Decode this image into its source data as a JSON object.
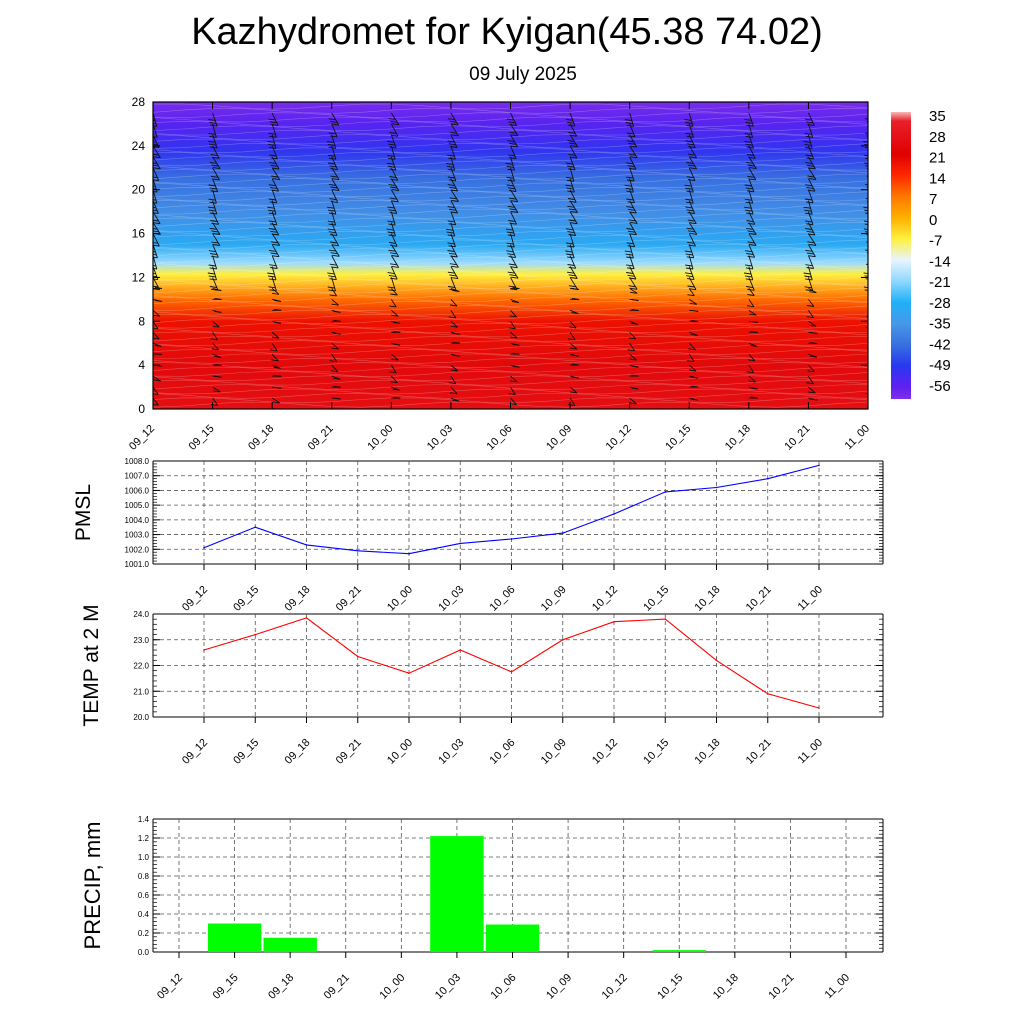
{
  "page": {
    "title": "Kazhydromet for Kyigan(45.38 74.02)",
    "subtitle": "09 July 2025"
  },
  "chart_data": [
    {
      "type": "heatmap",
      "title": "",
      "xlabel": "",
      "ylabel": "",
      "x_tick_labels": [
        "09_12",
        "09_15",
        "09_18",
        "09_21",
        "10_00",
        "10_03",
        "10_06",
        "10_09",
        "10_12",
        "10_15",
        "10_18",
        "10_21",
        "11_00"
      ],
      "ylim": [
        0,
        28
      ],
      "y_ticks": [
        0,
        4,
        8,
        12,
        16,
        20,
        24,
        28
      ],
      "colorbar_labels": [
        "35",
        "28",
        "21",
        "14",
        "7",
        "0",
        "-7",
        "-14",
        "-21",
        "-28",
        "-35",
        "-42",
        "-49",
        "-56"
      ],
      "color_stops": [
        {
          "value": 35,
          "color": "#f8b8b8"
        },
        {
          "value": 32,
          "color": "#e8202a"
        },
        {
          "value": 21,
          "color": "#e00000"
        },
        {
          "value": 14,
          "color": "#ff2800"
        },
        {
          "value": 7,
          "color": "#ff7800"
        },
        {
          "value": 0,
          "color": "#ffb000"
        },
        {
          "value": -7,
          "color": "#fff040"
        },
        {
          "value": -14,
          "color": "#e8f4ff"
        },
        {
          "value": -21,
          "color": "#90d8ff"
        },
        {
          "value": -28,
          "color": "#20b0f8"
        },
        {
          "value": -35,
          "color": "#4898e8"
        },
        {
          "value": -42,
          "color": "#3870e0"
        },
        {
          "value": -49,
          "color": "#2838f0"
        },
        {
          "value": -56,
          "color": "#6020f0"
        },
        {
          "value": -60,
          "color": "#8030e8"
        }
      ],
      "temperature_profile": [
        {
          "level": 0,
          "value": 26
        },
        {
          "level": 4,
          "value": 24
        },
        {
          "level": 8,
          "value": 18
        },
        {
          "level": 10,
          "value": 8
        },
        {
          "level": 12.3,
          "value": -7
        },
        {
          "level": 13.3,
          "value": -20
        },
        {
          "level": 15,
          "value": -30
        },
        {
          "level": 18,
          "value": -37
        },
        {
          "level": 21,
          "value": -42
        },
        {
          "level": 23.5,
          "value": -50
        },
        {
          "level": 26,
          "value": -55
        },
        {
          "level": 28,
          "value": -59
        }
      ],
      "wind_barbs": true
    },
    {
      "type": "line",
      "ylabel": "PMSL",
      "x": [
        "09_12",
        "09_15",
        "09_18",
        "09_21",
        "10_00",
        "10_03",
        "10_06",
        "10_09",
        "10_12",
        "10_15",
        "10_18",
        "10_21",
        "11_00"
      ],
      "ylim": [
        1001.0,
        1008.0
      ],
      "y_ticks": [
        "1001.0",
        "1002.0",
        "1003.0",
        "1004.0",
        "1005.0",
        "1006.0",
        "1007.0",
        "1008.0"
      ],
      "line_color": "#0000ff",
      "values": [
        1002.1,
        1003.5,
        1002.3,
        1001.9,
        1001.7,
        1002.4,
        1002.7,
        1003.1,
        1004.4,
        1005.9,
        1006.2,
        1006.8,
        1007.7
      ]
    },
    {
      "type": "line",
      "ylabel": "TEMP at 2 M",
      "x": [
        "09_12",
        "09_15",
        "09_18",
        "09_21",
        "10_00",
        "10_03",
        "10_06",
        "10_09",
        "10_12",
        "10_15",
        "10_18",
        "10_21",
        "11_00"
      ],
      "ylim": [
        20.0,
        24.0
      ],
      "y_ticks": [
        "20.0",
        "21.0",
        "22.0",
        "23.0",
        "24.0"
      ],
      "line_color": "#ff0000",
      "values": [
        22.6,
        23.2,
        23.85,
        22.35,
        21.7,
        22.6,
        21.75,
        23.0,
        23.7,
        23.8,
        22.2,
        20.9,
        20.35
      ]
    },
    {
      "type": "bar",
      "ylabel": "PRECIP, mm",
      "categories": [
        "09_12",
        "09_15",
        "09_18",
        "09_21",
        "10_00",
        "10_03",
        "10_06",
        "10_09",
        "10_12",
        "10_15",
        "10_18",
        "10_21",
        "11_00"
      ],
      "ylim": [
        0,
        1.4
      ],
      "y_ticks": [
        "0.0",
        "0.2",
        "0.4",
        "0.6",
        "0.8",
        "1.0",
        "1.2",
        "1.4"
      ],
      "bar_color": "#00ff00",
      "values": [
        0,
        0.3,
        0.15,
        0,
        0,
        1.22,
        0.29,
        0,
        0,
        0.02,
        0,
        0,
        0
      ]
    }
  ]
}
